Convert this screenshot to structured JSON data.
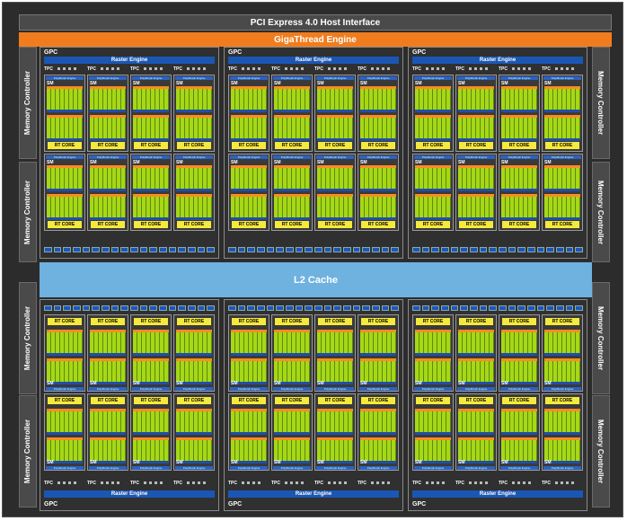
{
  "header": {
    "pcie": "PCI Express 4.0 Host Interface",
    "gigathread": "GigaThread Engine"
  },
  "l2": "L2 Cache",
  "memory_controller_label": "Memory Controller",
  "gpc_label": "GPC",
  "raster_label": "Raster Engine",
  "tpc_label": "TPC",
  "sm_label": "SM",
  "rt_label": "RT CORE",
  "polymorph_label": "PolyMorph Engine",
  "colors": {
    "background": "#2c2c2c",
    "gigathread": "#f07c1e",
    "l2_cache": "#6fb2e0",
    "raster_engine": "#1a57b5",
    "rt_core": "#f5e93c",
    "cuda_cores": "#a6d816"
  }
}
